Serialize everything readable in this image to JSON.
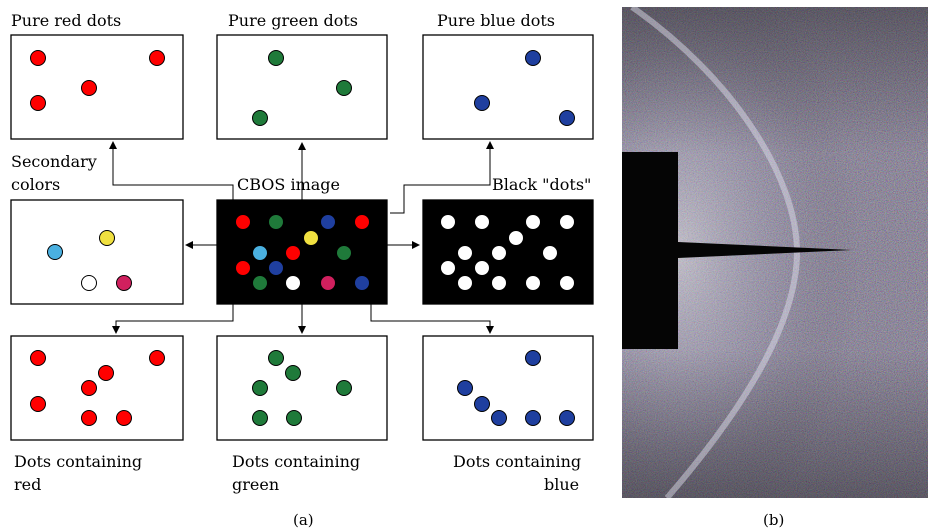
{
  "labels": {
    "pure_red": "Pure red dots",
    "pure_green": "Pure green dots",
    "pure_blue": "Pure blue dots",
    "secondary_line1": "Secondary",
    "secondary_line2": "colors",
    "cbos": "CBOS image",
    "black_dots": "Black \"dots\"",
    "contain_red_line1": "Dots containing",
    "contain_red_line2": "red",
    "contain_green_line1": "Dots containing",
    "contain_green_line2": "green",
    "contain_blue_line1": "Dots containing",
    "contain_blue_line2": "blue"
  },
  "captions": {
    "a": "(a)",
    "b": "(b)"
  },
  "colors": {
    "red": "#ff0000",
    "green": "#1f7a3a",
    "blue": "#1f3f9f",
    "cyan": "#4ab0e0",
    "yellow": "#f0e040",
    "magenta": "#d0205e",
    "white": "#ffffff",
    "black": "#000000"
  },
  "panels": [
    {
      "id": "pure-red",
      "bg": "white",
      "dots": [
        "red",
        "red",
        "red",
        "red"
      ]
    },
    {
      "id": "pure-green",
      "bg": "white",
      "dots": [
        "green",
        "green",
        "green"
      ]
    },
    {
      "id": "pure-blue",
      "bg": "white",
      "dots": [
        "blue",
        "blue",
        "blue"
      ]
    },
    {
      "id": "secondary",
      "bg": "white",
      "dots": [
        "cyan",
        "yellow",
        "white",
        "magenta"
      ]
    },
    {
      "id": "cbos",
      "bg": "black",
      "dots": [
        "red",
        "green",
        "blue",
        "red",
        "cyan",
        "red",
        "yellow",
        "blue",
        "green",
        "red",
        "green",
        "white",
        "magenta",
        "blue"
      ]
    },
    {
      "id": "black-dots",
      "bg": "black",
      "dots": [
        "white",
        "white",
        "white",
        "white",
        "white",
        "white",
        "white",
        "white",
        "white",
        "white",
        "white",
        "white",
        "white",
        "white"
      ]
    },
    {
      "id": "contain-red",
      "bg": "white",
      "dots": [
        "red",
        "red",
        "red",
        "red",
        "red",
        "red",
        "red"
      ]
    },
    {
      "id": "contain-green",
      "bg": "white",
      "dots": [
        "green",
        "green",
        "green",
        "green",
        "green",
        "green"
      ]
    },
    {
      "id": "contain-blue",
      "bg": "white",
      "dots": [
        "blue",
        "blue",
        "blue",
        "blue",
        "blue",
        "blue",
        "blue"
      ]
    }
  ]
}
